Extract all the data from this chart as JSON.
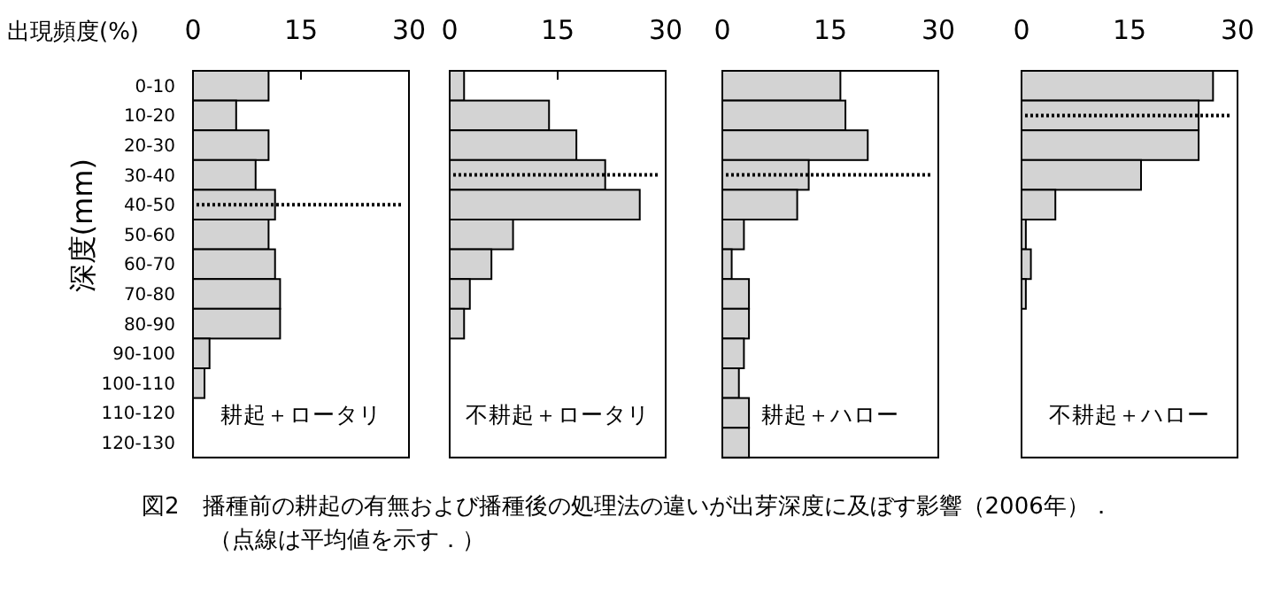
{
  "chart_data": [
    {
      "type": "bar",
      "orientation": "horizontal",
      "title": "耕起＋ロータリ",
      "xlabel": "出現頻度(%)",
      "ylabel": "深度(mm)",
      "categories": [
        "0-10",
        "10-20",
        "20-30",
        "30-40",
        "40-50",
        "50-60",
        "60-70",
        "70-80",
        "80-90",
        "90-100",
        "100-110",
        "110-120",
        "120-130"
      ],
      "series": [
        {
          "color": "#d3d3d3",
          "values": [
            10.5,
            6.0,
            10.5,
            8.7,
            11.4,
            10.5,
            11.4,
            12.1,
            12.1,
            2.3,
            1.6,
            0,
            0
          ]
        }
      ],
      "xlim": [
        0,
        30
      ],
      "xticks": [
        0,
        15,
        30
      ],
      "ref_lines": [
        {
          "axis": "y",
          "value": "40-50",
          "line_style": "dotted",
          "color": "#000000"
        }
      ],
      "annotations": [
        "図2　播種前の耕起の有無および播種後の処理法の違いが出芽深度に及ぼす影響（2006年）．",
        "（点線は平均値を示す．）"
      ]
    },
    {
      "type": "bar",
      "orientation": "horizontal",
      "title": "不耕起＋ロータリ",
      "categories": [
        "0-10",
        "10-20",
        "20-30",
        "30-40",
        "40-50",
        "50-60",
        "60-70",
        "70-80",
        "80-90",
        "90-100",
        "100-110",
        "110-120",
        "120-130"
      ],
      "tick_labels": "x",
      "series": [
        {
          "color": "#d3d3d3",
          "values": [
            2.0,
            13.8,
            17.6,
            21.6,
            26.4,
            8.8,
            5.8,
            2.8,
            2.0,
            0,
            0,
            0,
            0
          ]
        }
      ],
      "xlim": [
        0,
        30
      ],
      "xticks": [
        0,
        15,
        30
      ],
      "ref_lines": [
        {
          "axis": "y",
          "value": "30-40",
          "line_style": "dotted",
          "color": "#000000"
        }
      ]
    },
    {
      "type": "bar",
      "orientation": "horizontal",
      "title": "耕起＋ハロー",
      "categories": [
        "0-10",
        "10-20",
        "20-30",
        "30-40",
        "40-50",
        "50-60",
        "60-70",
        "70-80",
        "80-90",
        "90-100",
        "100-110",
        "110-120",
        "120-130"
      ],
      "tick_labels": "x",
      "series": [
        {
          "color": "#d3d3d3",
          "values": [
            16.4,
            17.1,
            20.2,
            12.0,
            10.4,
            3.0,
            1.3,
            3.7,
            3.7,
            3.0,
            2.3,
            3.7,
            3.7
          ]
        }
      ],
      "xlim": [
        0,
        30
      ],
      "xticks": [
        0,
        15,
        30
      ],
      "ref_lines": [
        {
          "axis": "y",
          "value": "30-40",
          "line_style": "dotted",
          "color": "#000000"
        }
      ]
    },
    {
      "type": "bar",
      "orientation": "horizontal",
      "title": "不耕起＋ハロー",
      "categories": [
        "0-10",
        "10-20",
        "20-30",
        "30-40",
        "40-50",
        "50-60",
        "60-70",
        "70-80",
        "80-90",
        "90-100",
        "100-110",
        "110-120",
        "120-130"
      ],
      "tick_labels": "x",
      "series": [
        {
          "color": "#d3d3d3",
          "values": [
            26.6,
            24.6,
            24.6,
            16.6,
            4.7,
            0.6,
            1.3,
            0.6,
            0,
            0,
            0,
            0,
            0
          ]
        }
      ],
      "xlim": [
        0,
        30
      ],
      "xticks": [
        0,
        15,
        30
      ],
      "ref_lines": [
        {
          "axis": "y",
          "value": "10-20",
          "line_style": "dotted",
          "color": "#000000"
        }
      ]
    }
  ]
}
